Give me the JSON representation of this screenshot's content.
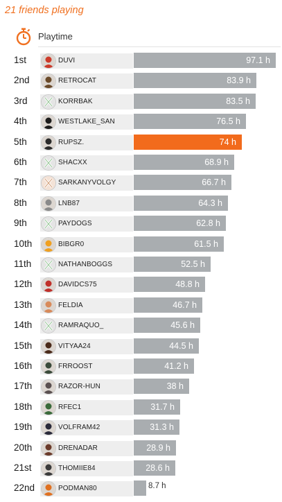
{
  "header": {
    "title": "21 friends playing"
  },
  "sort": {
    "label": "Playtime",
    "icon": "stopwatch-icon"
  },
  "colors": {
    "accent": "#f26b1c",
    "bar": "#a9adb0",
    "name_bg": "#eeeeee"
  },
  "max_hours": 97.1,
  "rows": [
    {
      "rank": "1st",
      "name": "DUVI",
      "hours": 97.1,
      "label": "97.1 h",
      "avatar": "#cc3a2a",
      "me": false
    },
    {
      "rank": "2nd",
      "name": "RETROCAT",
      "hours": 83.9,
      "label": "83.9 h",
      "avatar": "#6a4a2a",
      "me": false
    },
    {
      "rank": "3rd",
      "name": "KORRBAK",
      "hours": 83.5,
      "label": "83.5 h",
      "avatar": "default",
      "me": false
    },
    {
      "rank": "4th",
      "name": "WESTLAKE_SAN",
      "hours": 76.5,
      "label": "76.5 h",
      "avatar": "#1c1c1c",
      "me": false
    },
    {
      "rank": "5th",
      "name": "RUPSZ.",
      "hours": 74,
      "label": "74 h",
      "avatar": "#2a2a2a",
      "me": true
    },
    {
      "rank": "6th",
      "name": "SHACXX",
      "hours": 68.9,
      "label": "68.9 h",
      "avatar": "default",
      "me": false
    },
    {
      "rank": "7th",
      "name": "SARKANYVOLGY",
      "hours": 66.7,
      "label": "66.7 h",
      "avatar": "default-peach",
      "me": false
    },
    {
      "rank": "8th",
      "name": "LNB87",
      "hours": 64.3,
      "label": "64.3 h",
      "avatar": "#8a8a8a",
      "me": false
    },
    {
      "rank": "9th",
      "name": "PAYDOGS",
      "hours": 62.8,
      "label": "62.8 h",
      "avatar": "default",
      "me": false
    },
    {
      "rank": "10th",
      "name": "BIBGR0",
      "hours": 61.5,
      "label": "61.5 h",
      "avatar": "#f0a020",
      "me": false
    },
    {
      "rank": "11th",
      "name": "NATHANBOGGS",
      "hours": 52.5,
      "label": "52.5 h",
      "avatar": "default",
      "me": false
    },
    {
      "rank": "12th",
      "name": "DAVIDCS75",
      "hours": 48.8,
      "label": "48.8 h",
      "avatar": "#c0302a",
      "me": false
    },
    {
      "rank": "13th",
      "name": "FELDIA",
      "hours": 46.7,
      "label": "46.7 h",
      "avatar": "#d88a5a",
      "me": false
    },
    {
      "rank": "14th",
      "name": "RAMRAQUO_",
      "hours": 45.6,
      "label": "45.6 h",
      "avatar": "default",
      "me": false
    },
    {
      "rank": "15th",
      "name": "VITYAA24",
      "hours": 44.5,
      "label": "44.5 h",
      "avatar": "#4a2a1a",
      "me": false
    },
    {
      "rank": "16th",
      "name": "FRROOST",
      "hours": 41.2,
      "label": "41.2 h",
      "avatar": "#3a4a3a",
      "me": false
    },
    {
      "rank": "17th",
      "name": "RAZOR-HUN",
      "hours": 38,
      "label": "38 h",
      "avatar": "#5a5050",
      "me": false
    },
    {
      "rank": "18th",
      "name": "RFEC1",
      "hours": 31.7,
      "label": "31.7 h",
      "avatar": "#3a6a3a",
      "me": false
    },
    {
      "rank": "19th",
      "name": "VOLFRAM42",
      "hours": 31.3,
      "label": "31.3 h",
      "avatar": "#2a2a3a",
      "me": false
    },
    {
      "rank": "20th",
      "name": "DRENADAR",
      "hours": 28.9,
      "label": "28.9 h",
      "avatar": "#6a3a2a",
      "me": false
    },
    {
      "rank": "21st",
      "name": "THOMIIE84",
      "hours": 28.6,
      "label": "28.6 h",
      "avatar": "#3a3a3a",
      "me": false
    },
    {
      "rank": "22nd",
      "name": "PODMAN80",
      "hours": 8.7,
      "label": "8.7 h",
      "avatar": "#e07020",
      "me": false
    }
  ]
}
